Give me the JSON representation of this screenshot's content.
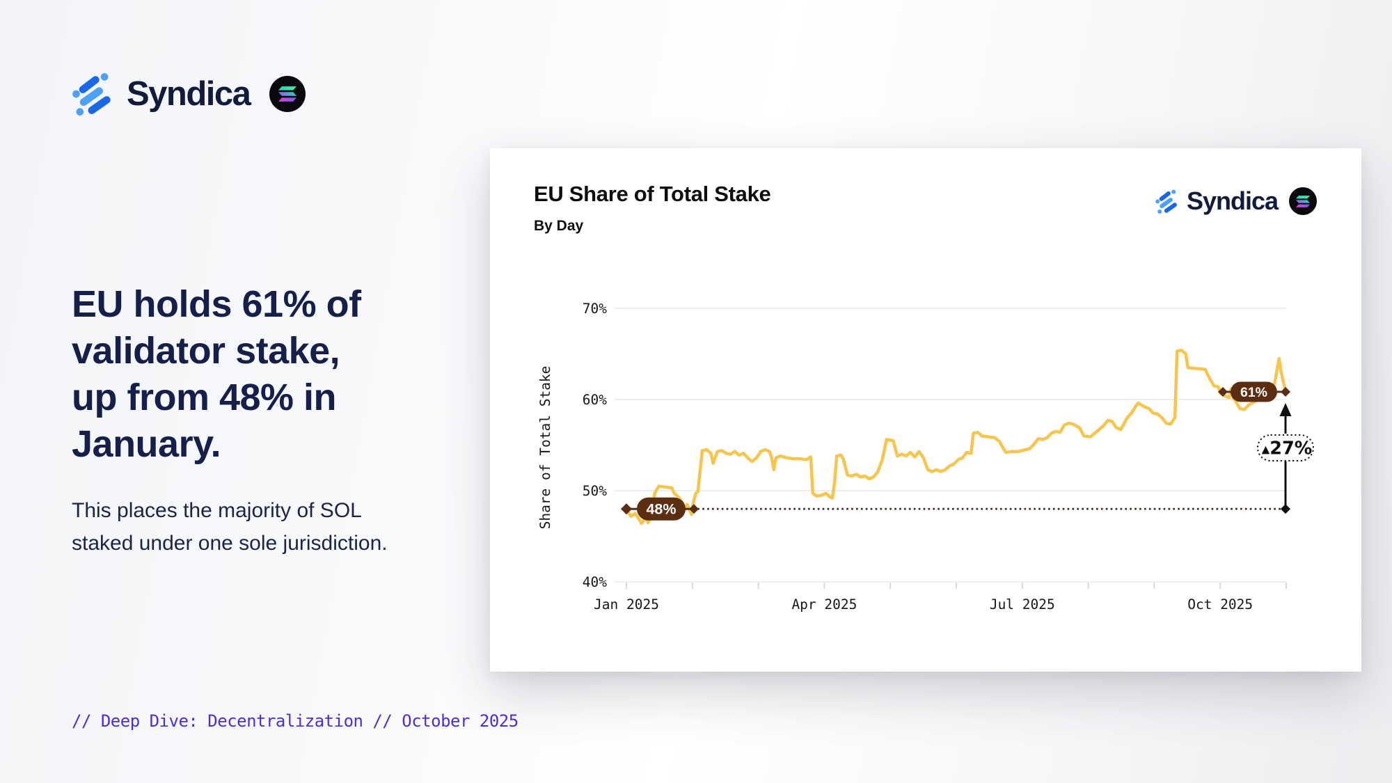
{
  "brand": {
    "wordmark": "Syndica",
    "icon_dark_blue": "#1A67E8",
    "icon_light_blue": "#4DA1F7",
    "wordmark_color": "#131B3D"
  },
  "left_panel": {
    "headline_lines": [
      "EU holds 61% of",
      "validator stake,",
      "up from 48% in",
      "January."
    ],
    "subheadline_lines": [
      "This places the majority of SOL",
      "staked under one sole jurisdiction."
    ],
    "footer": "// Deep Dive: Decentralization // October 2025"
  },
  "card": {
    "title": "EU Share of Total Stake",
    "subtitle": "By Day",
    "brand_wordmark": "Syndica"
  },
  "icons": {
    "syndica-logo-icon": "three diagonal blue capsules with dots",
    "solana-icon": "black circle with three gradient bars"
  },
  "colors": {
    "line_yellow": "#F5C54D",
    "badge_brown": "#5C2E11",
    "headline_navy": "#161F49",
    "footer_purple": "#4B2ED6",
    "grid_gray": "#e8e8ea",
    "tick_gray": "#d9d9db",
    "annotation_black": "#111111",
    "dotted_ref": "#33261a",
    "solana_gradient": [
      "#1EDDB0",
      "#51E7A6",
      "#9A5CF0",
      "#28D7BE",
      "#D943D0",
      "#7A5CF5"
    ]
  },
  "chart_data": {
    "type": "line",
    "title": "EU Share of Total Stake",
    "subtitle": "By Day",
    "xlabel": "",
    "ylabel": "Share of Total Stake",
    "x_unit": "days since Jan 1 2025",
    "x_tick_labels": [
      "Jan 2025",
      "Apr 2025",
      "Jul 2025",
      "Oct 2025"
    ],
    "x_tick_months": [
      0,
      3,
      6,
      9
    ],
    "months_shown": 10,
    "y_ticks": [
      40,
      50,
      60,
      70
    ],
    "y_tick_format": "%",
    "ylim": [
      40,
      72
    ],
    "grid": "horizontal-only",
    "annotations": {
      "start_marker": {
        "label": "48%",
        "value": 48,
        "day": 0
      },
      "end_marker": {
        "label": "61%",
        "value": 61,
        "day": 304
      },
      "delta_pill": {
        "label": "▲27%",
        "triangle": "▲",
        "text": "27%"
      },
      "reference_line": {
        "value": 48,
        "style": "dotted",
        "from_day": 31,
        "to_day": 304
      }
    },
    "series": [
      {
        "name": "EU Share of Total Stake",
        "color": "#F5C54D",
        "points": [
          [
            0,
            48
          ],
          [
            1,
            47.6
          ],
          [
            2,
            47.2
          ],
          [
            4,
            47.5
          ],
          [
            6,
            46.8
          ],
          [
            7,
            46.4
          ],
          [
            9,
            47.1
          ],
          [
            10,
            46.5
          ],
          [
            11,
            46.9
          ],
          [
            12,
            47.0
          ],
          [
            13,
            49.7
          ],
          [
            15,
            50.5
          ],
          [
            18,
            50.4
          ],
          [
            21,
            50.3
          ],
          [
            22,
            49.7
          ],
          [
            24,
            49.3
          ],
          [
            26,
            48.6
          ],
          [
            27,
            47.9
          ],
          [
            28,
            48.5
          ],
          [
            30,
            47.4
          ],
          [
            31,
            48.8
          ],
          [
            32,
            49.7
          ],
          [
            33,
            49.9
          ],
          [
            34,
            52.2
          ],
          [
            35,
            54.4
          ],
          [
            37,
            54.5
          ],
          [
            39,
            54.1
          ],
          [
            40,
            53.0
          ],
          [
            42,
            54.3
          ],
          [
            44,
            54.4
          ],
          [
            46,
            54.1
          ],
          [
            48,
            54.0
          ],
          [
            50,
            54.3
          ],
          [
            52,
            53.9
          ],
          [
            54,
            54.1
          ],
          [
            56,
            53.6
          ],
          [
            58,
            53.2
          ],
          [
            60,
            53.6
          ],
          [
            62,
            54.3
          ],
          [
            64,
            54.5
          ],
          [
            66,
            54.3
          ],
          [
            67,
            53.6
          ],
          [
            68,
            52.3
          ],
          [
            69,
            53.6
          ],
          [
            71,
            53.8
          ],
          [
            74,
            53.6
          ],
          [
            77,
            53.5
          ],
          [
            80,
            53.5
          ],
          [
            83,
            53.4
          ],
          [
            85,
            53.7
          ],
          [
            86,
            49.7
          ],
          [
            88,
            49.4
          ],
          [
            90,
            49.5
          ],
          [
            92,
            49.7
          ],
          [
            94,
            49.3
          ],
          [
            95,
            49.2
          ],
          [
            96,
            50.9
          ],
          [
            97,
            53.8
          ],
          [
            99,
            53.9
          ],
          [
            100,
            53.5
          ],
          [
            101,
            52.6
          ],
          [
            102,
            51.7
          ],
          [
            104,
            51.6
          ],
          [
            106,
            51.8
          ],
          [
            108,
            51.5
          ],
          [
            110,
            51.6
          ],
          [
            112,
            51.3
          ],
          [
            114,
            51.5
          ],
          [
            116,
            52.1
          ],
          [
            118,
            53.4
          ],
          [
            120,
            55.6
          ],
          [
            123,
            55.5
          ],
          [
            125,
            53.8
          ],
          [
            127,
            54.0
          ],
          [
            129,
            53.8
          ],
          [
            131,
            54.2
          ],
          [
            133,
            53.7
          ],
          [
            135,
            54.3
          ],
          [
            137,
            53.6
          ],
          [
            139,
            52.3
          ],
          [
            141,
            52.1
          ],
          [
            143,
            52.3
          ],
          [
            145,
            52.1
          ],
          [
            147,
            52.3
          ],
          [
            149,
            52.7
          ],
          [
            151,
            52.9
          ],
          [
            153,
            53.4
          ],
          [
            155,
            53.6
          ],
          [
            157,
            54.2
          ],
          [
            159,
            54.1
          ],
          [
            160,
            56.3
          ],
          [
            162,
            56.4
          ],
          [
            164,
            56.0
          ],
          [
            167,
            55.9
          ],
          [
            170,
            55.8
          ],
          [
            172,
            55.4
          ],
          [
            175,
            54.2
          ],
          [
            178,
            54.3
          ],
          [
            181,
            54.3
          ],
          [
            184,
            54.5
          ],
          [
            186,
            54.6
          ],
          [
            188,
            55.1
          ],
          [
            190,
            55.7
          ],
          [
            192,
            55.6
          ],
          [
            194,
            55.8
          ],
          [
            196,
            56.3
          ],
          [
            198,
            56.5
          ],
          [
            200,
            56.4
          ],
          [
            202,
            57.2
          ],
          [
            204,
            57.4
          ],
          [
            206,
            57.3
          ],
          [
            209,
            56.9
          ],
          [
            211,
            56.0
          ],
          [
            214,
            55.9
          ],
          [
            216,
            56.3
          ],
          [
            220,
            57.1
          ],
          [
            222,
            57.7
          ],
          [
            224,
            57.6
          ],
          [
            226,
            56.9
          ],
          [
            228,
            56.7
          ],
          [
            231,
            58.0
          ],
          [
            233,
            58.5
          ],
          [
            235,
            59.3
          ],
          [
            236,
            59.6
          ],
          [
            239,
            59.2
          ],
          [
            241,
            59.0
          ],
          [
            243,
            58.5
          ],
          [
            245,
            58.4
          ],
          [
            247,
            58.0
          ],
          [
            249,
            57.4
          ],
          [
            251,
            57.3
          ],
          [
            253,
            58.0
          ],
          [
            254,
            65.3
          ],
          [
            256,
            65.4
          ],
          [
            258,
            65.0
          ],
          [
            259,
            63.5
          ],
          [
            263,
            63.4
          ],
          [
            267,
            63.3
          ],
          [
            269,
            62.3
          ],
          [
            271,
            61.5
          ],
          [
            273,
            61.4
          ],
          [
            274,
            60.7
          ],
          [
            276,
            60.4
          ],
          [
            278,
            60.2
          ],
          [
            279,
            61.2
          ],
          [
            280,
            60.1
          ],
          [
            281,
            59.8
          ],
          [
            283,
            59.0
          ],
          [
            285,
            58.9
          ],
          [
            287,
            59.4
          ],
          [
            290,
            59.8
          ],
          [
            293,
            60.3
          ],
          [
            295,
            61.0
          ],
          [
            297,
            61.3
          ],
          [
            299,
            61.8
          ],
          [
            301,
            64.5
          ],
          [
            302,
            63.0
          ],
          [
            303,
            61.9
          ],
          [
            304,
            61.0
          ]
        ]
      }
    ]
  }
}
